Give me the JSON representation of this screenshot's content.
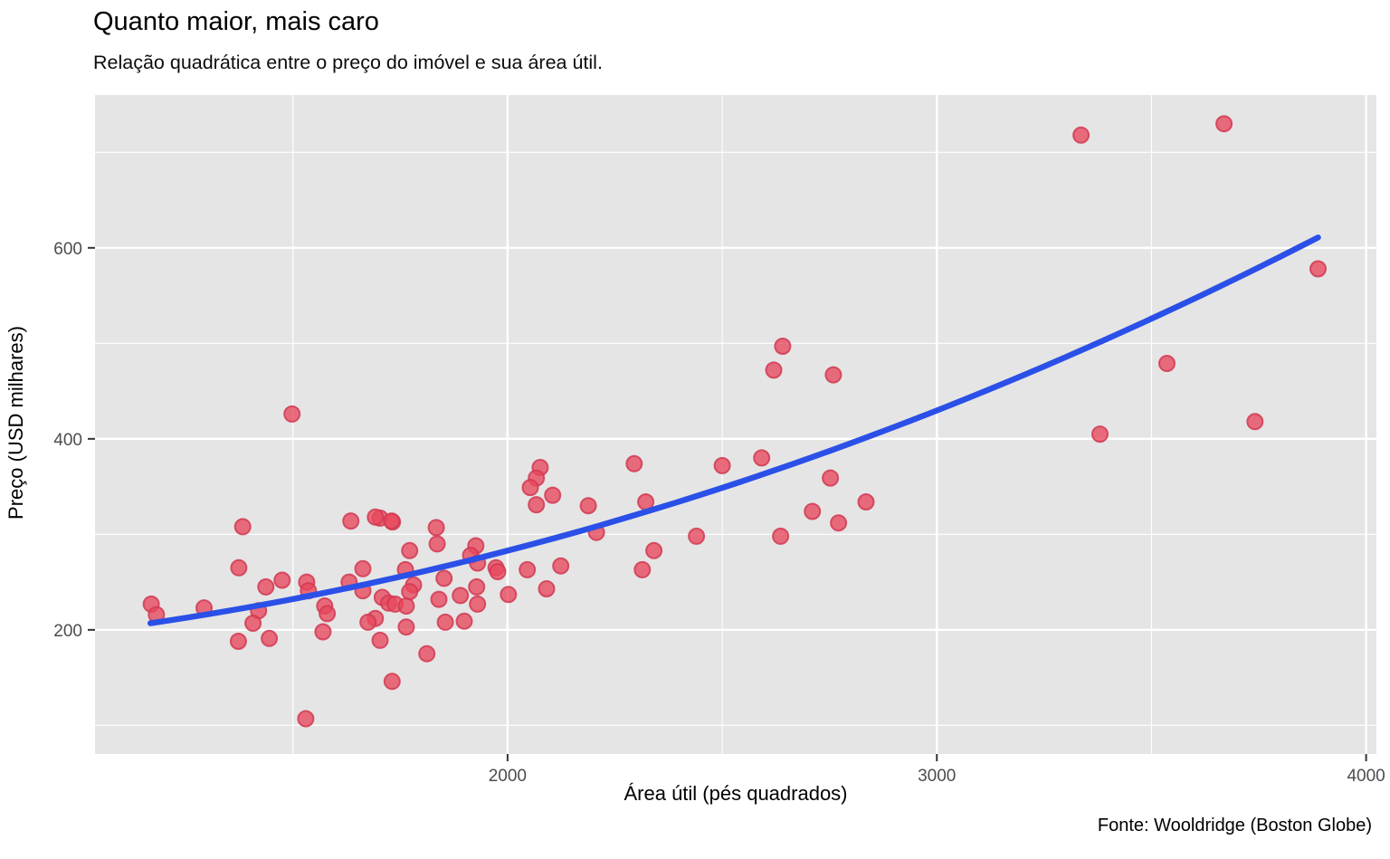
{
  "figure": {
    "title": "Quanto maior, mais caro",
    "subtitle": "Relação quadrática entre o preço do imóvel e sua área útil.",
    "caption": "Fonte: Wooldridge (Boston Globe)"
  },
  "chart_data": {
    "type": "scatter",
    "title": "Quanto maior, mais caro",
    "subtitle": "Relação quadrática entre o preço do imóvel e sua área útil.",
    "caption": "Fonte: Wooldridge (Boston Globe)",
    "xlabel": "Área útil (pés quadrados)",
    "ylabel": "Preço (USD milhares)",
    "x_domain": [
      1039,
      4024
    ],
    "y_domain": [
      70,
      760
    ],
    "x_ticks": [
      2000,
      3000,
      4000
    ],
    "y_ticks": [
      200,
      400,
      600
    ],
    "x_minor_ticks": [
      1500,
      2500,
      3500
    ],
    "y_minor_ticks": [
      100,
      300,
      500,
      700
    ],
    "grid": true,
    "legend": "none",
    "points": [
      [
        1170,
        227
      ],
      [
        1182,
        216
      ],
      [
        1293,
        223
      ],
      [
        1383,
        308
      ],
      [
        1374,
        265
      ],
      [
        1437,
        245
      ],
      [
        1475,
        252
      ],
      [
        1420,
        220
      ],
      [
        1407,
        207
      ],
      [
        1373,
        188
      ],
      [
        1445,
        191
      ],
      [
        1532,
        250
      ],
      [
        1536,
        241
      ],
      [
        1574,
        225
      ],
      [
        1570,
        198
      ],
      [
        1580,
        217
      ],
      [
        1631,
        250
      ],
      [
        1663,
        264
      ],
      [
        1663,
        241
      ],
      [
        1692,
        212
      ],
      [
        1675,
        208
      ],
      [
        1708,
        234
      ],
      [
        1723,
        228
      ],
      [
        1738,
        227
      ],
      [
        1764,
        225
      ],
      [
        1764,
        203
      ],
      [
        1855,
        208
      ],
      [
        1899,
        209
      ],
      [
        1703,
        189
      ],
      [
        1731,
        146
      ],
      [
        1530,
        107
      ],
      [
        1703,
        317
      ],
      [
        1732,
        313
      ],
      [
        1834,
        307
      ],
      [
        1836,
        290
      ],
      [
        1772,
        283
      ],
      [
        1762,
        263
      ],
      [
        1781,
        247
      ],
      [
        1772,
        240
      ],
      [
        1852,
        254
      ],
      [
        1926,
        288
      ],
      [
        1914,
        278
      ],
      [
        1930,
        270
      ],
      [
        1973,
        265
      ],
      [
        1977,
        261
      ],
      [
        1928,
        245
      ],
      [
        1890,
        236
      ],
      [
        1840,
        232
      ],
      [
        1930,
        227
      ],
      [
        2002,
        237
      ],
      [
        2046,
        263
      ],
      [
        2091,
        243
      ],
      [
        2124,
        267
      ],
      [
        2207,
        302
      ],
      [
        2341,
        283
      ],
      [
        2314,
        263
      ],
      [
        1812,
        175
      ],
      [
        2076,
        370
      ],
      [
        2067,
        359
      ],
      [
        2053,
        349
      ],
      [
        2105,
        341
      ],
      [
        2067,
        331
      ],
      [
        2188,
        330
      ],
      [
        2295,
        374
      ],
      [
        2322,
        334
      ],
      [
        2500,
        372
      ],
      [
        2641,
        497
      ],
      [
        2620,
        472
      ],
      [
        2759,
        467
      ],
      [
        2592,
        380
      ],
      [
        2752,
        359
      ],
      [
        2835,
        334
      ],
      [
        2710,
        324
      ],
      [
        2771,
        312
      ],
      [
        2636,
        298
      ],
      [
        2440,
        298
      ],
      [
        1498,
        426
      ],
      [
        1635,
        314
      ],
      [
        1692,
        318
      ],
      [
        1730,
        314
      ],
      [
        3336,
        718
      ],
      [
        3669,
        730
      ],
      [
        3888,
        578
      ],
      [
        3536,
        479
      ],
      [
        3741,
        418
      ],
      [
        3380,
        405
      ]
    ],
    "smooth_line": {
      "model": "quadratic",
      "coefficients": {
        "intercept": 171.1,
        "x": -0.0047,
        "x2": 3.03e-05
      },
      "x_range": [
        1168,
        3888
      ]
    },
    "colors": {
      "point_fill": "#E8485C",
      "point_stroke": "#D13A52",
      "line": "#2B50E8",
      "panel_background": "#E5E5E5",
      "gridline": "#FFFFFF",
      "tick_label": "#4D4D4D",
      "tick_mark": "#333333",
      "text": "#000000"
    }
  }
}
